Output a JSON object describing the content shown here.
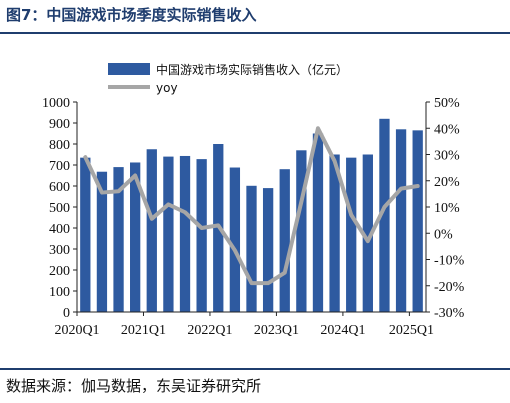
{
  "figure": {
    "title": "图7：中国游戏市场季度实际销售收入",
    "source": "数据来源：伽马数据，东吴证券研究所"
  },
  "chart_data": {
    "type": "bar",
    "categories": [
      "2020Q1",
      "2020Q2",
      "2020Q3",
      "2020Q4",
      "2021Q1",
      "2021Q2",
      "2021Q3",
      "2021Q4",
      "2022Q1",
      "2022Q2",
      "2022Q3",
      "2022Q4",
      "2023Q1",
      "2023Q2",
      "2023Q3",
      "2023Q4",
      "2024Q1",
      "2024Q2",
      "2024Q3",
      "2024Q4",
      "2025Q1"
    ],
    "x_tick_labels": [
      "2020Q1",
      "2021Q1",
      "2022Q1",
      "2023Q1",
      "2024Q1",
      "2025Q1"
    ],
    "series": [
      {
        "name": "中国游戏市场实际销售收入（亿元）",
        "type": "bar",
        "axis": "left",
        "color": "#2e5aa0",
        "values": [
          735,
          668,
          690,
          712,
          775,
          740,
          743,
          728,
          800,
          688,
          601,
          590,
          680,
          770,
          850,
          750,
          735,
          750,
          920,
          870,
          865
        ]
      },
      {
        "name": "yoy",
        "type": "line",
        "axis": "right",
        "color": "#a6a6a6",
        "values": [
          29.0,
          15.5,
          16.0,
          22.0,
          5.5,
          11.0,
          8.0,
          2.0,
          3.0,
          -6.5,
          -19.0,
          -19.0,
          -15.0,
          12.0,
          40.0,
          27.5,
          7.0,
          -3.0,
          10.0,
          17.0,
          18.0
        ]
      }
    ],
    "y_left": {
      "min": 0,
      "max": 1000,
      "step": 100,
      "ticks": [
        "0",
        "100",
        "200",
        "300",
        "400",
        "500",
        "600",
        "700",
        "800",
        "900",
        "1000"
      ]
    },
    "y_right": {
      "min": -30,
      "max": 50,
      "step": 10,
      "ticks": [
        "-30%",
        "-20%",
        "-10%",
        "0%",
        "10%",
        "20%",
        "30%",
        "40%",
        "50%"
      ]
    },
    "legend_position": "top-center",
    "grid": false
  }
}
